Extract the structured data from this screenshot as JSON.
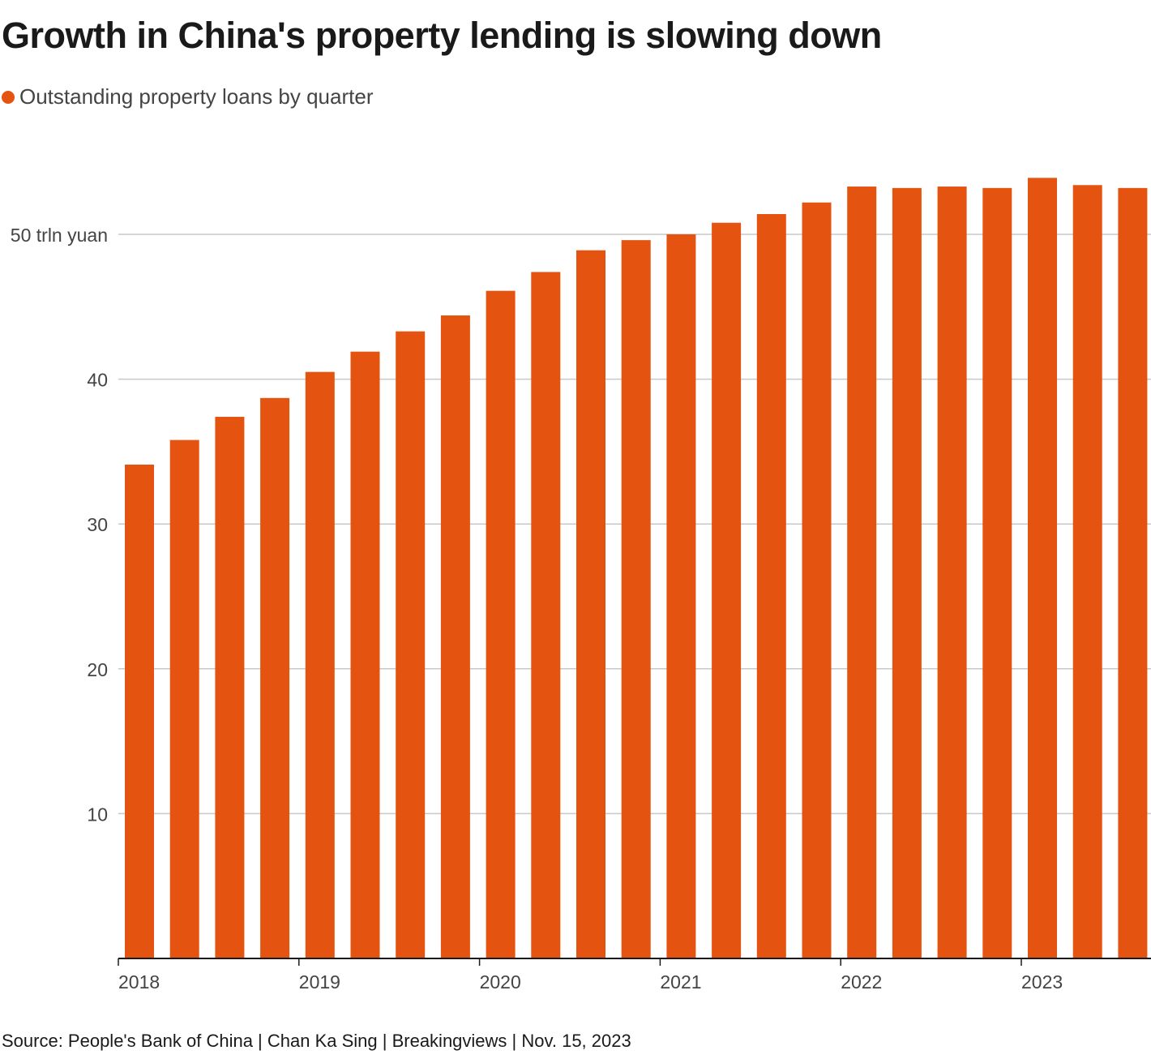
{
  "chart_data": {
    "type": "bar",
    "title": "Growth in China's property lending is slowing down",
    "legend": "Outstanding property loans by quarter",
    "ylabel": "trln yuan",
    "ylim": [
      0,
      50
    ],
    "y_ticks": [
      {
        "value": 10,
        "label": "10"
      },
      {
        "value": 20,
        "label": "20"
      },
      {
        "value": 30,
        "label": "30"
      },
      {
        "value": 40,
        "label": "40"
      },
      {
        "value": 50,
        "label": "50 trln yuan"
      }
    ],
    "x_tick_labels": [
      {
        "index": 0,
        "label": "2018"
      },
      {
        "index": 4,
        "label": "2019"
      },
      {
        "index": 8,
        "label": "2020"
      },
      {
        "index": 12,
        "label": "2021"
      },
      {
        "index": 16,
        "label": "2022"
      },
      {
        "index": 20,
        "label": "2023"
      }
    ],
    "categories": [
      "Q1 2018",
      "Q2 2018",
      "Q3 2018",
      "Q4 2018",
      "Q1 2019",
      "Q2 2019",
      "Q3 2019",
      "Q4 2019",
      "Q1 2020",
      "Q2 2020",
      "Q3 2020",
      "Q4 2020",
      "Q1 2021",
      "Q2 2021",
      "Q3 2021",
      "Q4 2021",
      "Q1 2022",
      "Q2 2022",
      "Q3 2022",
      "Q4 2022",
      "Q1 2023",
      "Q2 2023",
      "Q3 2023"
    ],
    "values": [
      34.1,
      35.8,
      37.4,
      38.7,
      40.5,
      41.9,
      43.3,
      44.4,
      46.1,
      47.4,
      48.9,
      49.6,
      50.0,
      50.8,
      51.4,
      52.2,
      53.3,
      53.2,
      53.3,
      53.2,
      53.9,
      53.4,
      53.2
    ],
    "color": "#E55310",
    "grid": true
  },
  "footer": "Source: People's Bank of China | Chan Ka Sing | Breakingviews | Nov. 15, 2023"
}
